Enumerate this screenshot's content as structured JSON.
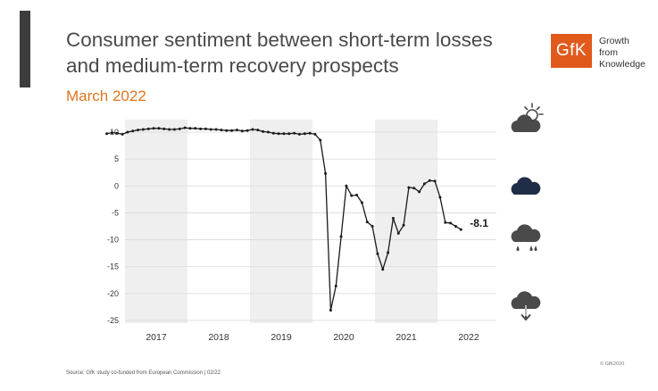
{
  "header": {
    "title_line1": "Consumer sentiment between short-term losses",
    "title_line2": "and medium-term recovery prospects",
    "subtitle": "March 2022"
  },
  "logo": {
    "mark": "GfK",
    "tagline": [
      "Growth",
      "from",
      "Knowledge"
    ],
    "brand_color": "#e05a1c"
  },
  "weather_icons": [
    "sun-behind-cloud-icon",
    "cloud-icon",
    "rain-lightning-cloud-icon",
    "cloud-down-arrow-icon"
  ],
  "footer": {
    "source": "Source: GfK study co-funded from European Commission | 02/22",
    "copyright": "© GfK2020"
  },
  "chart_data": {
    "type": "line",
    "title": "Consumer sentiment",
    "xlabel": "",
    "ylabel": "",
    "ylim": [
      -25,
      10
    ],
    "yticks": [
      "10",
      "5",
      "0",
      "-5",
      "-10",
      "-15",
      "-20",
      "-25"
    ],
    "ytick_values": [
      10,
      5,
      0,
      -5,
      -10,
      -15,
      -20,
      -25
    ],
    "years": [
      "2017",
      "2018",
      "2019",
      "2020",
      "2021",
      "2022"
    ],
    "shaded_years": [
      "2017",
      "2019",
      "2021"
    ],
    "grid": true,
    "line_color": "#1a1a1a",
    "shade_color": "#efefef",
    "end_label": "-8.1",
    "series": [
      {
        "name": "Consumer sentiment",
        "start": "2016-09",
        "values": [
          9.7,
          9.9,
          9.8,
          9.6,
          10.0,
          10.2,
          10.4,
          10.5,
          10.6,
          10.7,
          10.7,
          10.6,
          10.5,
          10.5,
          10.6,
          10.8,
          10.7,
          10.7,
          10.6,
          10.6,
          10.5,
          10.5,
          10.4,
          10.3,
          10.3,
          10.4,
          10.2,
          10.3,
          10.5,
          10.4,
          10.1,
          10.0,
          9.8,
          9.7,
          9.7,
          9.7,
          9.8,
          9.6,
          9.7,
          9.8,
          9.6,
          8.5,
          2.3,
          -23.1,
          -18.6,
          -9.4,
          0.0,
          -1.8,
          -1.7,
          -3.1,
          -6.7,
          -7.5,
          -12.6,
          -15.5,
          -12.4,
          -6.0,
          -8.8,
          -7.3,
          -0.3,
          -0.4,
          -1.1,
          0.4,
          1.0,
          0.9,
          -2.1,
          -6.8,
          -6.9,
          -7.5,
          -8.1
        ]
      }
    ]
  }
}
